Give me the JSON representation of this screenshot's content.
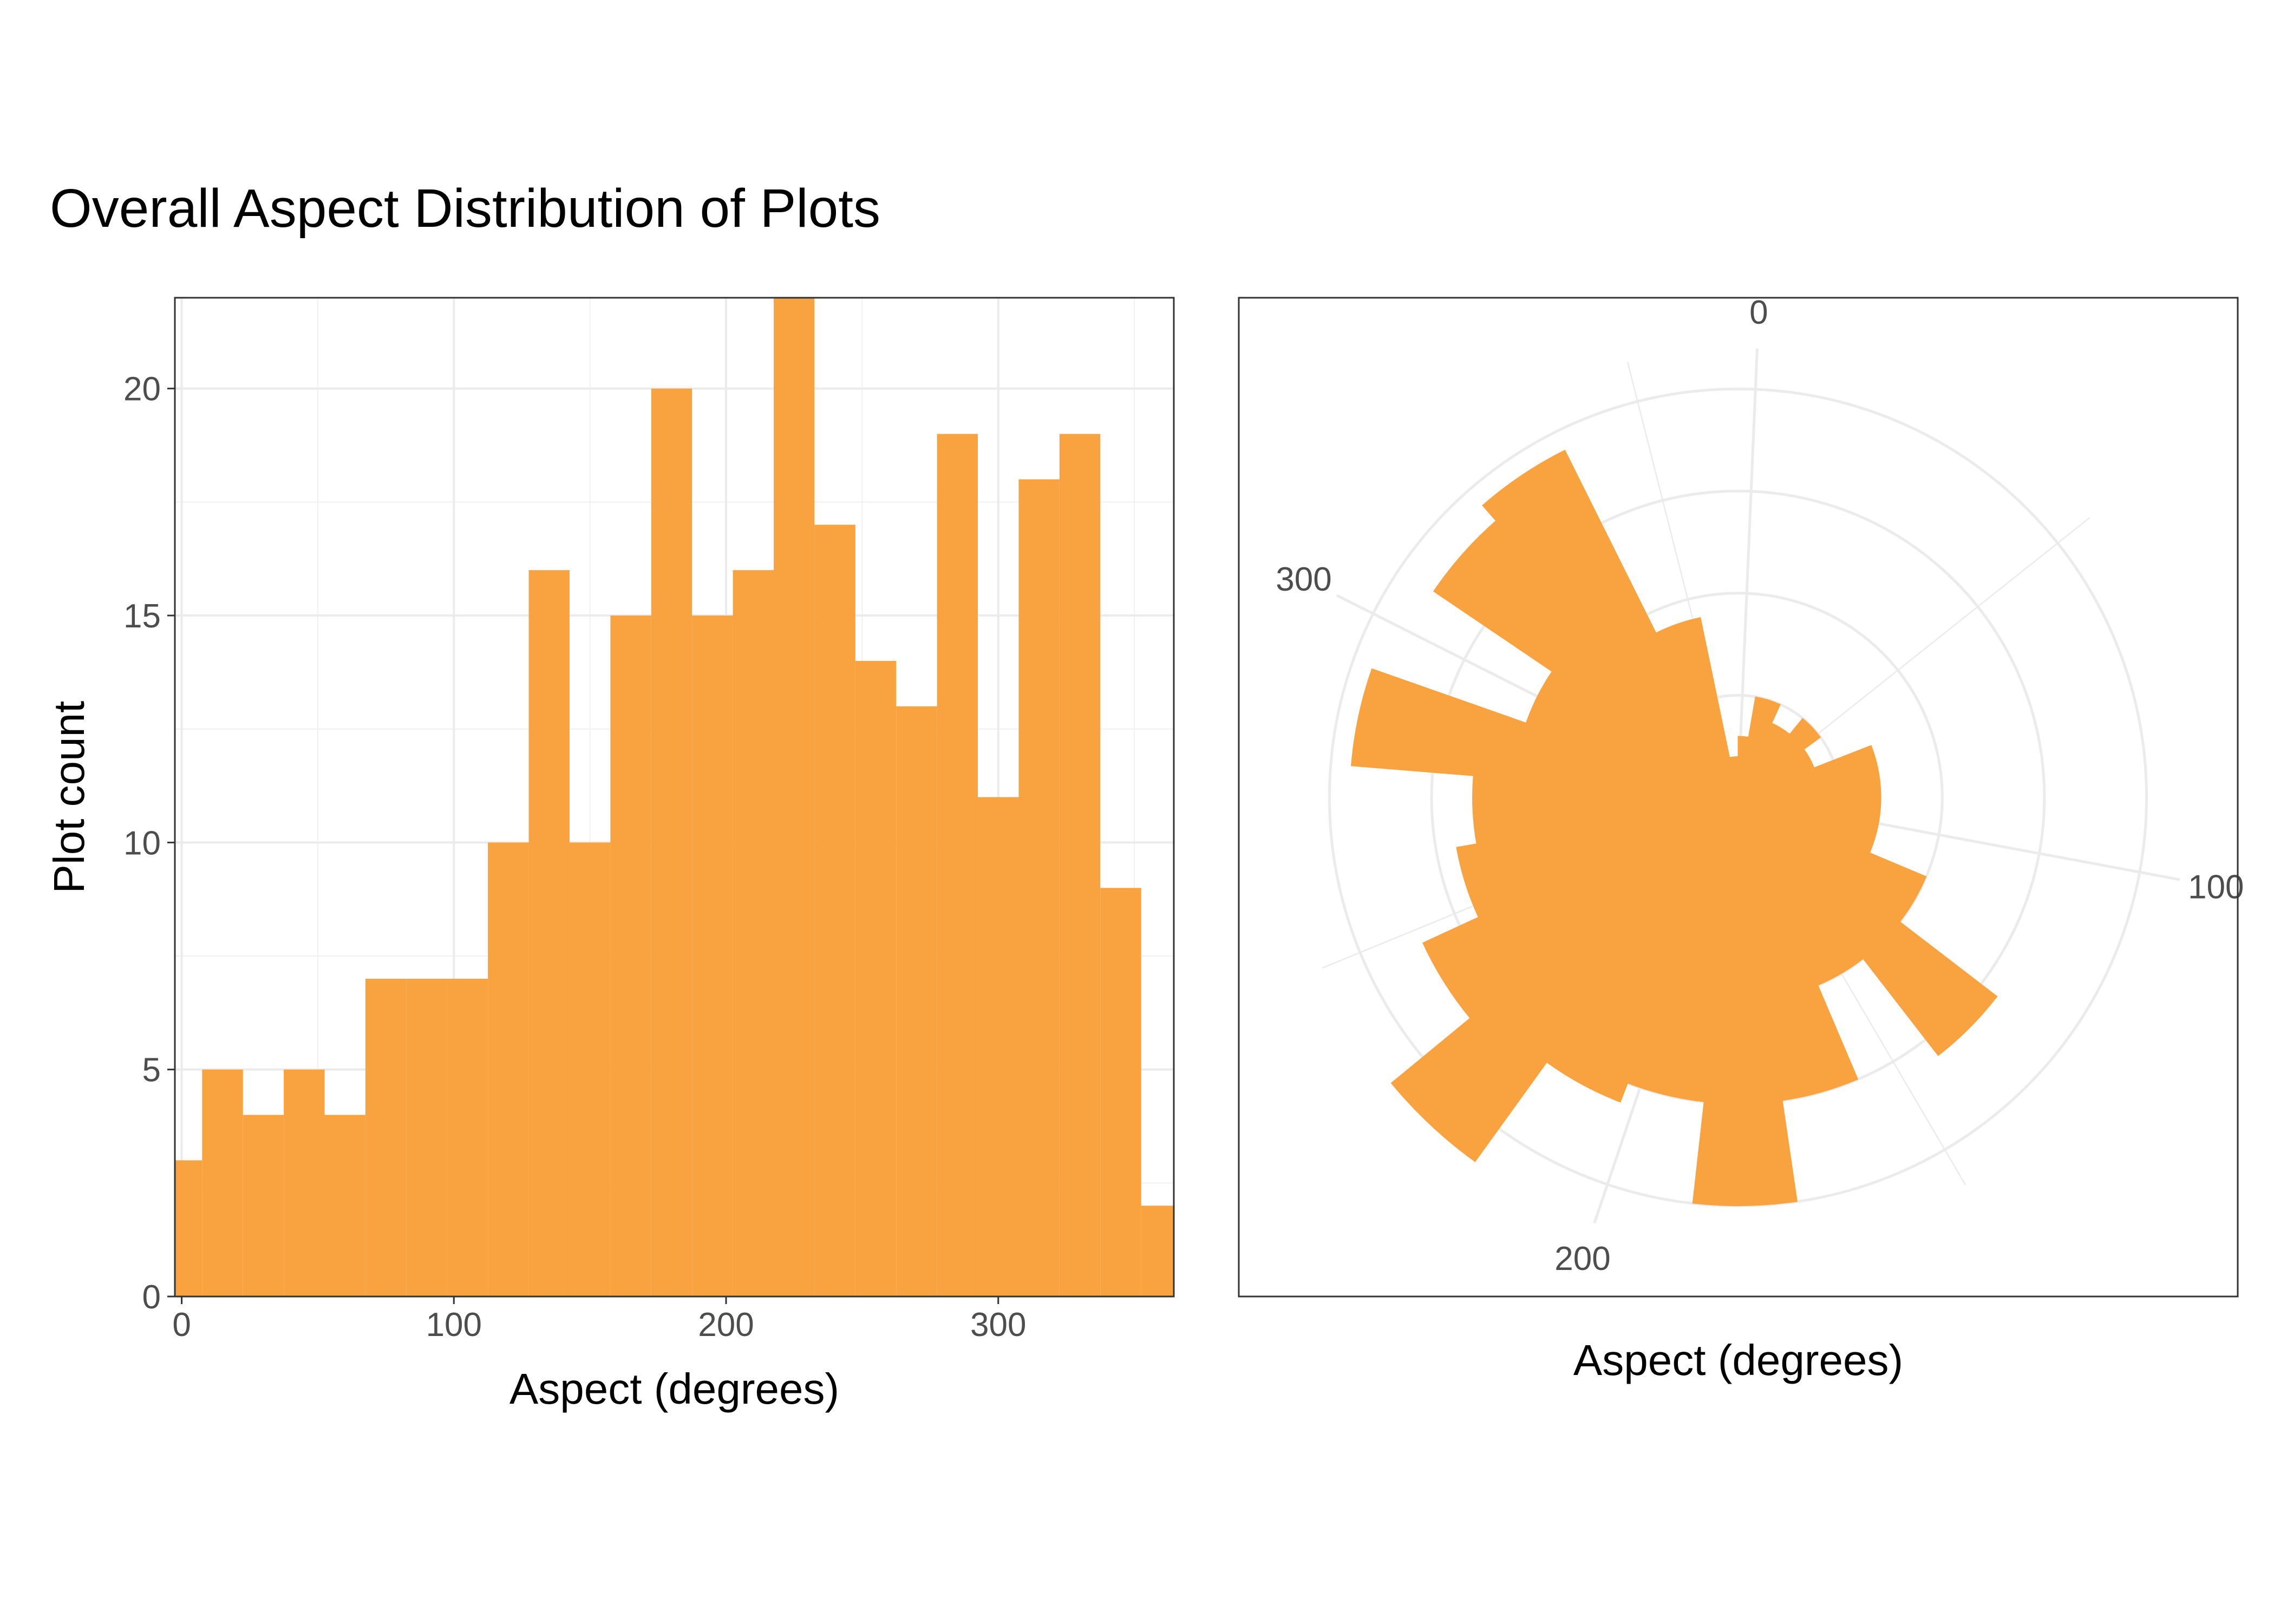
{
  "title": "Overall Aspect Distribution of Plots",
  "bar_color": "#F9A340",
  "chart_data": [
    {
      "type": "bar",
      "subtype": "histogram",
      "xlabel": "Aspect (degrees)",
      "ylabel": "Plot count",
      "x_ticks": [
        "0",
        "100",
        "200",
        "300"
      ],
      "y_ticks": [
        "0",
        "5",
        "10",
        "15",
        "20"
      ],
      "xlim": [
        -2.5,
        364.5
      ],
      "ylim": [
        0,
        22
      ],
      "bin_width": 15,
      "bin_centers": [
        0,
        15,
        30,
        45,
        60,
        75,
        90,
        105,
        120,
        135,
        150,
        165,
        180,
        195,
        210,
        225,
        240,
        255,
        270,
        285,
        300,
        315,
        330,
        345,
        360
      ],
      "values": [
        3,
        5,
        4,
        5,
        4,
        7,
        7,
        7,
        10,
        16,
        10,
        15,
        20,
        15,
        16,
        22,
        17,
        14,
        13,
        19,
        11,
        18,
        19,
        9,
        2
      ],
      "grid": true
    },
    {
      "type": "bar",
      "subtype": "polar-histogram",
      "xlabel": "Aspect (degrees)",
      "theta_ticks": [
        "0",
        "100",
        "200",
        "300"
      ],
      "theta_range": [
        -2.5,
        364.5
      ],
      "r_max": 22,
      "r_grid_values": [
        5,
        10,
        15,
        20
      ],
      "theta_minor_grid_values": [
        50,
        150,
        250,
        350
      ],
      "bin_width": 15,
      "bin_centers": [
        0,
        15,
        30,
        45,
        60,
        75,
        90,
        105,
        120,
        135,
        150,
        165,
        180,
        195,
        210,
        225,
        240,
        255,
        270,
        285,
        300,
        315,
        330,
        345,
        360
      ],
      "values": [
        3,
        5,
        4,
        5,
        4,
        7,
        7,
        7,
        10,
        16,
        10,
        15,
        20,
        15,
        16,
        22,
        17,
        14,
        13,
        19,
        11,
        18,
        19,
        9,
        2
      ],
      "grid": true
    }
  ]
}
